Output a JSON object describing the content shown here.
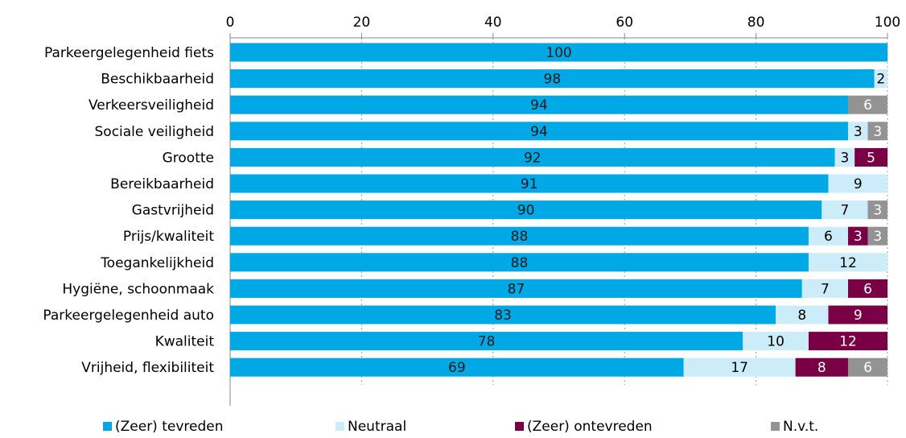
{
  "chart_data": {
    "type": "bar",
    "orientation": "horizontal",
    "stacked": true,
    "xlim": [
      0,
      100
    ],
    "xticks": [
      "0",
      "20",
      "40",
      "60",
      "80",
      "100"
    ],
    "grid": true,
    "legend_position": "bottom",
    "categories": [
      "Parkeergelegenheid fiets",
      "Beschikbaarheid",
      "Verkeersveiligheid",
      "Sociale veiligheid",
      "Grootte",
      "Bereikbaarheid",
      "Gastvrijheid",
      "Prijs/kwaliteit",
      "Toegankelijkheid",
      "Hygiëne, schoonmaak",
      "Parkeergelegenheid auto",
      "Kwaliteit",
      "Vrijheid, flexibiliteit"
    ],
    "series": [
      {
        "name": "(Zeer) tevreden",
        "color": "#00a8e6",
        "label_color": "#1a1a1a",
        "values": [
          100,
          98,
          94,
          94,
          92,
          91,
          90,
          88,
          88,
          87,
          83,
          78,
          69
        ]
      },
      {
        "name": "Neutraal",
        "color": "#ccecf9",
        "label_color": "#000000",
        "values": [
          0,
          2,
          0,
          3,
          3,
          9,
          7,
          6,
          12,
          7,
          8,
          10,
          17
        ]
      },
      {
        "name": "(Zeer) ontevreden",
        "color": "#7a0045",
        "label_color": "#ffffff",
        "values": [
          0,
          0,
          0,
          0,
          5,
          0,
          0,
          3,
          0,
          6,
          9,
          12,
          8
        ]
      },
      {
        "name": "N.v.t.",
        "color": "#939393",
        "label_color": "#ffffff",
        "values": [
          0,
          0,
          6,
          3,
          0,
          0,
          3,
          3,
          0,
          0,
          0,
          0,
          6
        ]
      }
    ]
  }
}
